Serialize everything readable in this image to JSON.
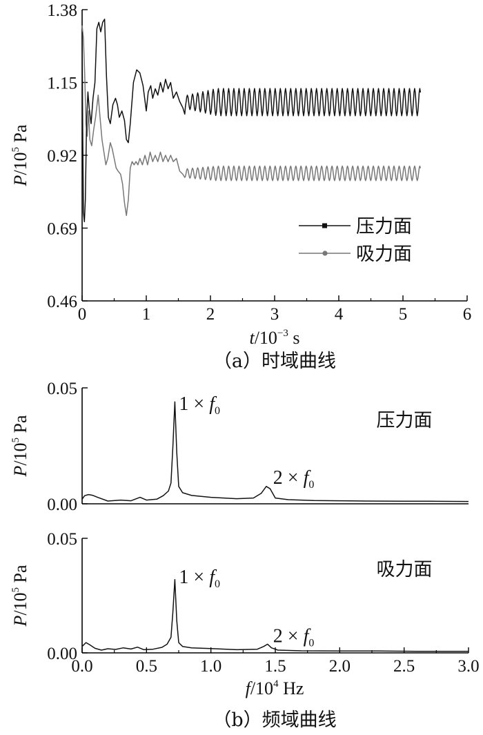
{
  "chart_data": [
    {
      "type": "line",
      "caption": "（a）时域曲线",
      "xlabel": {
        "var": "t",
        "unit": "/10",
        "exp": "−3",
        "tail": " s"
      },
      "ylabel": {
        "var": "P",
        "unit": "/10",
        "exp": "5",
        "tail": " Pa"
      },
      "xlim": [
        0,
        6
      ],
      "ylim": [
        0.46,
        1.38
      ],
      "xticks": [
        "0",
        "1",
        "2",
        "3",
        "4",
        "5",
        "6"
      ],
      "yticks": [
        "0.46",
        "0.69",
        "0.92",
        "1.15",
        "1.38"
      ],
      "legend_position": "center-right",
      "series": [
        {
          "name": "压力面",
          "color": "#111111",
          "marker": "square",
          "points": [
            [
              0,
              1.31
            ],
            [
              0.01,
              1.0
            ],
            [
              0.02,
              0.74
            ],
            [
              0.035,
              0.71
            ],
            [
              0.05,
              0.78
            ],
            [
              0.07,
              1.03
            ],
            [
              0.09,
              1.12
            ],
            [
              0.11,
              1.07
            ],
            [
              0.14,
              1.02
            ],
            [
              0.17,
              1.1
            ],
            [
              0.2,
              1.15
            ],
            [
              0.23,
              1.32
            ],
            [
              0.26,
              1.34
            ],
            [
              0.29,
              1.31
            ],
            [
              0.32,
              1.34
            ],
            [
              0.35,
              1.35
            ],
            [
              0.38,
              1.17
            ],
            [
              0.41,
              1.04
            ],
            [
              0.44,
              1.02
            ],
            [
              0.48,
              1.08
            ],
            [
              0.52,
              1.1
            ],
            [
              0.55,
              1.08
            ],
            [
              0.58,
              1.04
            ],
            [
              0.62,
              1.06
            ],
            [
              0.66,
              1.03
            ],
            [
              0.69,
              0.97
            ],
            [
              0.72,
              0.96
            ],
            [
              0.75,
              1.02
            ],
            [
              0.8,
              1.15
            ],
            [
              0.85,
              1.19
            ],
            [
              0.9,
              1.18
            ],
            [
              0.95,
              1.14
            ],
            [
              1.0,
              1.06
            ],
            [
              1.03,
              1.12
            ],
            [
              1.07,
              1.14
            ],
            [
              1.1,
              1.1
            ],
            [
              1.14,
              1.13
            ],
            [
              1.18,
              1.11
            ],
            [
              1.22,
              1.15
            ],
            [
              1.26,
              1.12
            ],
            [
              1.3,
              1.16
            ],
            [
              1.34,
              1.13
            ],
            [
              1.38,
              1.15
            ],
            [
              1.42,
              1.1
            ],
            [
              1.47,
              1.12
            ],
            [
              1.52,
              1.09
            ],
            [
              1.57,
              1.07
            ],
            [
              1.6,
              1.05
            ]
          ],
          "oscillation": {
            "t_start": 1.6,
            "t_end": 5.28,
            "period": 0.0805,
            "mean": 1.088,
            "amp_start": 0.02,
            "amp_end": 0.043,
            "ramp_end": 2.1
          }
        },
        {
          "name": "吸力面",
          "color": "#777777",
          "marker": "circle",
          "points": [
            [
              0,
              1.33
            ],
            [
              0.02,
              1.29
            ],
            [
              0.04,
              1.18
            ],
            [
              0.06,
              1.02
            ],
            [
              0.08,
              0.98
            ],
            [
              0.1,
              1.06
            ],
            [
              0.12,
              0.97
            ],
            [
              0.15,
              0.95
            ],
            [
              0.18,
              1.0
            ],
            [
              0.21,
              1.04
            ],
            [
              0.25,
              1.11
            ],
            [
              0.28,
              1.04
            ],
            [
              0.31,
              0.97
            ],
            [
              0.34,
              0.93
            ],
            [
              0.37,
              0.89
            ],
            [
              0.4,
              0.91
            ],
            [
              0.44,
              0.96
            ],
            [
              0.47,
              0.94
            ],
            [
              0.5,
              0.91
            ],
            [
              0.53,
              0.88
            ],
            [
              0.56,
              0.87
            ],
            [
              0.6,
              0.86
            ],
            [
              0.63,
              0.83
            ],
            [
              0.66,
              0.77
            ],
            [
              0.69,
              0.73
            ],
            [
              0.72,
              0.78
            ],
            [
              0.75,
              0.88
            ],
            [
              0.78,
              0.9
            ],
            [
              0.81,
              0.89
            ],
            [
              0.84,
              0.9
            ],
            [
              0.87,
              0.89
            ],
            [
              0.9,
              0.91
            ],
            [
              0.94,
              0.89
            ],
            [
              0.98,
              0.92
            ],
            [
              1.02,
              0.89
            ],
            [
              1.06,
              0.93
            ],
            [
              1.1,
              0.9
            ],
            [
              1.14,
              0.92
            ],
            [
              1.18,
              0.9
            ],
            [
              1.22,
              0.93
            ],
            [
              1.26,
              0.9
            ],
            [
              1.3,
              0.92
            ],
            [
              1.34,
              0.9
            ],
            [
              1.38,
              0.92
            ],
            [
              1.42,
              0.9
            ],
            [
              1.47,
              0.91
            ],
            [
              1.52,
              0.87
            ],
            [
              1.57,
              0.86
            ],
            [
              1.6,
              0.85
            ]
          ],
          "oscillation": {
            "t_start": 1.6,
            "t_end": 5.28,
            "period": 0.0805,
            "mean": 0.863,
            "amp_start": 0.014,
            "amp_end": 0.023,
            "ramp_end": 2.1
          }
        }
      ]
    },
    {
      "type": "line",
      "panel_label": "压力面",
      "ylabel": {
        "var": "P",
        "unit": "/10",
        "exp": "5",
        "tail": " Pa"
      },
      "xlim": [
        0,
        3.0
      ],
      "ylim": [
        0,
        0.05
      ],
      "yticks": [
        "0.00",
        "0.05"
      ],
      "annotations": [
        {
          "k": "1",
          "sym": "f",
          "sub": "0",
          "x": 0.72,
          "y": 0.041
        },
        {
          "k": "2",
          "sym": "f",
          "sub": "0",
          "x": 1.44,
          "y": 0.0075
        }
      ],
      "series": [
        {
          "name": "压力面",
          "color": "#111111",
          "points": [
            [
              0,
              0.002
            ],
            [
              0.02,
              0.0035
            ],
            [
              0.05,
              0.004
            ],
            [
              0.08,
              0.0037
            ],
            [
              0.12,
              0.0028
            ],
            [
              0.2,
              0.0012
            ],
            [
              0.3,
              0.0016
            ],
            [
              0.38,
              0.0013
            ],
            [
              0.45,
              0.0028
            ],
            [
              0.5,
              0.0016
            ],
            [
              0.58,
              0.002
            ],
            [
              0.63,
              0.0035
            ],
            [
              0.67,
              0.0055
            ],
            [
              0.69,
              0.009
            ],
            [
              0.705,
              0.025
            ],
            [
              0.72,
              0.044
            ],
            [
              0.735,
              0.022
            ],
            [
              0.75,
              0.0075
            ],
            [
              0.78,
              0.0048
            ],
            [
              0.85,
              0.0036
            ],
            [
              1.0,
              0.0028
            ],
            [
              1.2,
              0.0022
            ],
            [
              1.33,
              0.0025
            ],
            [
              1.39,
              0.0045
            ],
            [
              1.43,
              0.0075
            ],
            [
              1.46,
              0.0065
            ],
            [
              1.5,
              0.0025
            ],
            [
              1.6,
              0.0018
            ],
            [
              1.8,
              0.0014
            ],
            [
              2.0,
              0.0013
            ],
            [
              2.2,
              0.0012
            ],
            [
              2.5,
              0.0011
            ],
            [
              2.7,
              0.0011
            ],
            [
              3.0,
              0.001
            ]
          ]
        }
      ]
    },
    {
      "type": "line",
      "panel_label": "吸力面",
      "caption": "（b）频域曲线",
      "xlabel": {
        "var": "f",
        "unit": "/10",
        "exp": "4",
        "tail": " Hz"
      },
      "ylabel": {
        "var": "P",
        "unit": "/10",
        "exp": "5",
        "tail": " Pa"
      },
      "xlim": [
        0,
        3.0
      ],
      "ylim": [
        0,
        0.05
      ],
      "xticks": [
        "0.0",
        "0.5",
        "1.0",
        "1.5",
        "2.0",
        "2.5",
        "3.0"
      ],
      "yticks": [
        "0.00",
        "0.05"
      ],
      "annotations": [
        {
          "k": "1",
          "sym": "f",
          "sub": "0",
          "x": 0.72,
          "y": 0.031
        },
        {
          "k": "2",
          "sym": "f",
          "sub": "0",
          "x": 1.44,
          "y": 0.0035
        }
      ],
      "series": [
        {
          "name": "吸力面",
          "color": "#111111",
          "points": [
            [
              0,
              0.0028
            ],
            [
              0.03,
              0.0045
            ],
            [
              0.06,
              0.0035
            ],
            [
              0.1,
              0.002
            ],
            [
              0.15,
              0.0012
            ],
            [
              0.2,
              0.0018
            ],
            [
              0.26,
              0.0015
            ],
            [
              0.32,
              0.0022
            ],
            [
              0.38,
              0.0017
            ],
            [
              0.43,
              0.0025
            ],
            [
              0.48,
              0.0014
            ],
            [
              0.55,
              0.0016
            ],
            [
              0.62,
              0.0024
            ],
            [
              0.66,
              0.0038
            ],
            [
              0.69,
              0.0068
            ],
            [
              0.705,
              0.018
            ],
            [
              0.72,
              0.032
            ],
            [
              0.735,
              0.014
            ],
            [
              0.75,
              0.0045
            ],
            [
              0.78,
              0.0028
            ],
            [
              0.85,
              0.0022
            ],
            [
              1.0,
              0.0019
            ],
            [
              1.2,
              0.0014
            ],
            [
              1.36,
              0.0016
            ],
            [
              1.41,
              0.0028
            ],
            [
              1.44,
              0.0038
            ],
            [
              1.47,
              0.0022
            ],
            [
              1.52,
              0.0012
            ],
            [
              1.7,
              0.0009
            ],
            [
              2.0,
              0.0008
            ],
            [
              2.3,
              0.0008
            ],
            [
              2.6,
              0.0007
            ],
            [
              3.0,
              0.0007
            ]
          ]
        }
      ]
    }
  ]
}
